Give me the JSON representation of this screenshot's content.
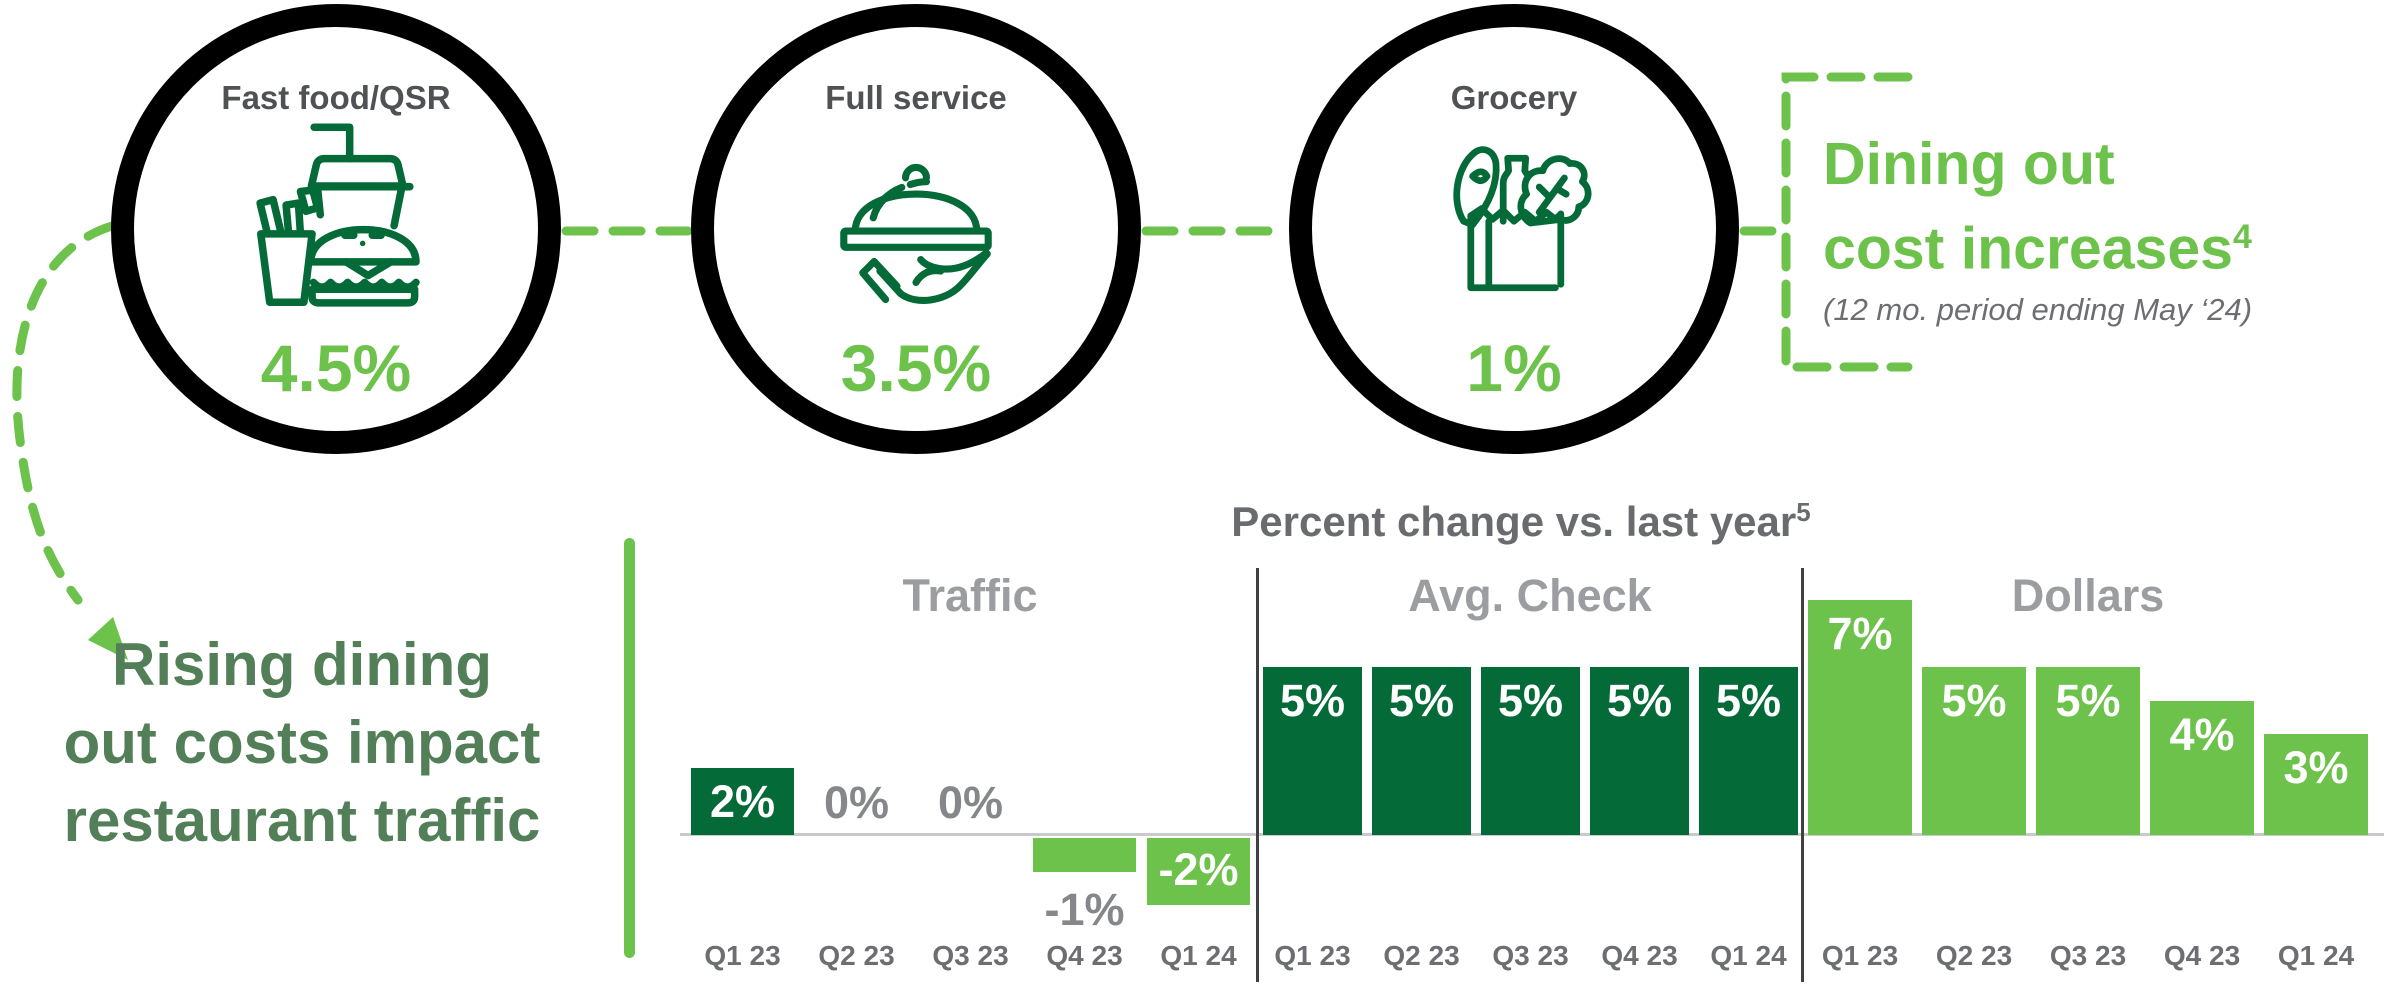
{
  "colors": {
    "bright_green": "#6CC24A",
    "dark_green": "#046A38",
    "headline_green": "#527E58",
    "circle_label_gray": "#4F5154",
    "chart_title_gray": "#696B6E",
    "group_title_gray": "#9B9DA0",
    "value_label_gray": "#85878A",
    "axis_label_gray": "#6D6E71",
    "baseline_gray": "#C9CACC",
    "divider_dark": "#3F4041",
    "ring_black": "#000000"
  },
  "cost_increase_section": {
    "circles": [
      {
        "label": "Fast food/QSR",
        "value": "4.5%",
        "icon": "fast-food-icon"
      },
      {
        "label": "Full service",
        "value": "3.5%",
        "icon": "serving-cloche-icon"
      },
      {
        "label": "Grocery",
        "value": "1%",
        "icon": "grocery-bag-icon"
      }
    ],
    "callout": {
      "heading_lines": [
        "Dining out",
        "cost increases"
      ],
      "footnote_ref": "4",
      "subheading": "(12 mo. period ending May ‘24)"
    }
  },
  "headline": {
    "lines": [
      "Rising dining",
      "out costs impact",
      "restaurant traffic"
    ]
  },
  "chart_data": {
    "type": "bar",
    "title": "Percent change vs. last year",
    "title_footnote_ref": "5",
    "unit": "%",
    "grid": false,
    "legend": "none",
    "baseline": 0,
    "ylim": [
      -2.5,
      7.5
    ],
    "categories": [
      "Q1 23",
      "Q2 23",
      "Q3 23",
      "Q4 23",
      "Q1 24"
    ],
    "series": [
      {
        "name": "Traffic",
        "values": [
          2,
          0,
          0,
          -1,
          -2
        ],
        "bar_colors": [
          "dark_green",
          null,
          null,
          "bright_green",
          "bright_green"
        ],
        "label_styles": [
          "inside_white",
          "zero_gray",
          "zero_gray",
          "below_gray",
          "inside_white"
        ]
      },
      {
        "name": "Avg. Check",
        "values": [
          5,
          5,
          5,
          5,
          5
        ],
        "bar_colors": [
          "dark_green",
          "dark_green",
          "dark_green",
          "dark_green",
          "dark_green"
        ],
        "label_styles": [
          "inside_white",
          "inside_white",
          "inside_white",
          "inside_white",
          "inside_white"
        ]
      },
      {
        "name": "Dollars",
        "values": [
          7,
          5,
          5,
          4,
          3
        ],
        "bar_colors": [
          "bright_green",
          "bright_green",
          "bright_green",
          "bright_green",
          "bright_green"
        ],
        "label_styles": [
          "inside_white",
          "inside_white",
          "inside_white",
          "inside_white",
          "inside_white"
        ]
      }
    ]
  }
}
